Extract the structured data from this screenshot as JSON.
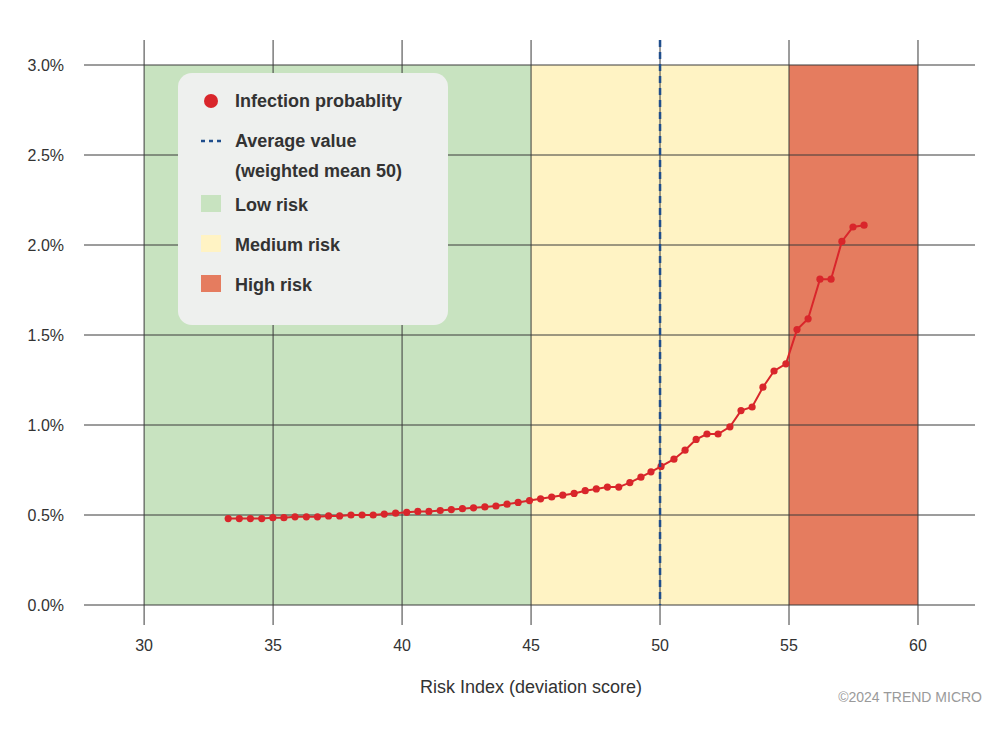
{
  "chart_data": {
    "type": "line",
    "x_label": "Risk Index (deviation score)",
    "source": "©2024 TREND MICRO",
    "xlim": [
      27.67,
      62.21
    ],
    "xticks": [
      30,
      35,
      40,
      45,
      50,
      55,
      60
    ],
    "ylim": [
      0,
      3.0
    ],
    "yticks": [
      {
        "value": 0,
        "label": "0.0%"
      },
      {
        "value": 0.5,
        "label": "0.5%"
      },
      {
        "value": 1.0,
        "label": "1.0%"
      },
      {
        "value": 1.5,
        "label": "1.5%"
      },
      {
        "value": 2.0,
        "label": "2.0%"
      },
      {
        "value": 2.5,
        "label": "2.5%"
      },
      {
        "value": 3.0,
        "label": "3.0%"
      }
    ],
    "grid": true,
    "legend": "upper left",
    "x": [
      33.26,
      33.69,
      34.12,
      34.56,
      34.99,
      35.42,
      35.85,
      36.29,
      36.72,
      37.15,
      37.58,
      38.02,
      38.45,
      38.88,
      39.31,
      39.75,
      40.18,
      40.61,
      41.04,
      41.48,
      41.91,
      42.34,
      42.77,
      43.21,
      43.64,
      44.07,
      44.5,
      44.94,
      45.37,
      45.8,
      46.23,
      46.67,
      47.1,
      47.53,
      47.96,
      48.4,
      48.83,
      49.26,
      49.65,
      50.04,
      50.54,
      50.97,
      51.4,
      51.82,
      52.25,
      52.71,
      53.14,
      53.57,
      53.99,
      54.42,
      54.88,
      55.31,
      55.74,
      56.2,
      56.63,
      57.05,
      57.48,
      57.91
    ],
    "series": [
      {
        "name": "Infection probablity",
        "color": "#d9262b",
        "marker": "circle",
        "line_style": "solid",
        "values": [
          0.48,
          0.48,
          0.48,
          0.48,
          0.485,
          0.485,
          0.49,
          0.49,
          0.49,
          0.495,
          0.495,
          0.5,
          0.5,
          0.5,
          0.505,
          0.51,
          0.515,
          0.52,
          0.52,
          0.525,
          0.53,
          0.535,
          0.54,
          0.545,
          0.55,
          0.56,
          0.57,
          0.58,
          0.59,
          0.6,
          0.61,
          0.62,
          0.635,
          0.645,
          0.655,
          0.655,
          0.68,
          0.71,
          0.74,
          0.77,
          0.81,
          0.86,
          0.92,
          0.95,
          0.95,
          0.99,
          1.08,
          1.1,
          1.21,
          1.3,
          1.34,
          1.53,
          1.59,
          1.81,
          1.81,
          2.02,
          2.1,
          2.11
        ]
      }
    ],
    "reference_lines": [
      {
        "x": 50,
        "label": [
          "Average value",
          "(weighted mean 50)"
        ],
        "color": "#1f4e8c",
        "line_style": "dashed"
      }
    ],
    "bands": [
      {
        "name": "Low risk",
        "color": "#c8e3c0",
        "range": [
          30,
          45
        ]
      },
      {
        "name": "Medium risk",
        "color": "#fff3c4",
        "range": [
          45,
          55
        ]
      },
      {
        "name": "High risk",
        "color": "#e57c5f",
        "range": [
          55,
          60
        ]
      }
    ]
  }
}
